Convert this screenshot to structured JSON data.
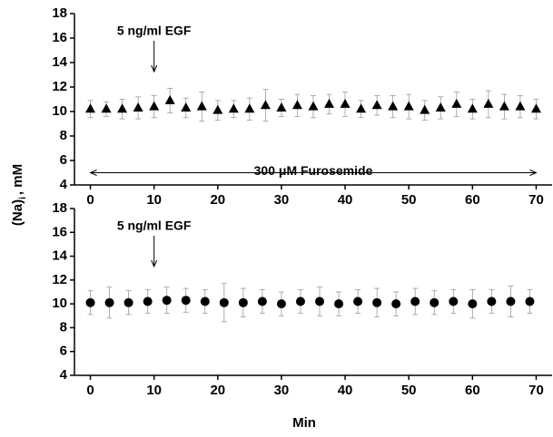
{
  "chart_data": [
    {
      "type": "scatter",
      "marker": "triangle",
      "y_label": "(Na)",
      "y_label_subscript": "i",
      "y_label_unit": ", mM",
      "xlim": [
        -2.5,
        72.5
      ],
      "ylim": [
        4,
        18
      ],
      "xticks": [
        0,
        10,
        20,
        30,
        40,
        50,
        60,
        70
      ],
      "yticks": [
        4,
        6,
        8,
        10,
        12,
        14,
        16,
        18
      ],
      "annotations": [
        {
          "text": "5 ng/ml EGF",
          "x": 10
        }
      ],
      "range_annotation": {
        "text": "300 μM Furosemide",
        "x_range": [
          0,
          70
        ]
      },
      "series": [
        {
          "color": "#000000",
          "x": [
            0,
            2.5,
            5,
            7.5,
            10,
            12.5,
            15,
            17.5,
            20,
            22.5,
            25,
            27.5,
            30,
            32.5,
            35,
            37.5,
            40,
            42.5,
            45,
            47.5,
            50,
            52.5,
            55,
            57.5,
            60,
            62.5,
            65,
            67.5,
            70
          ],
          "values": [
            10.2,
            10.2,
            10.2,
            10.3,
            10.4,
            10.9,
            10.3,
            10.4,
            10.1,
            10.2,
            10.2,
            10.5,
            10.3,
            10.5,
            10.4,
            10.6,
            10.6,
            10.2,
            10.5,
            10.4,
            10.4,
            10.1,
            10.3,
            10.6,
            10.2,
            10.6,
            10.4,
            10.4,
            10.2
          ],
          "errors": [
            0.7,
            0.6,
            0.8,
            0.9,
            0.9,
            1.0,
            0.8,
            1.2,
            0.8,
            0.7,
            0.9,
            1.3,
            0.7,
            0.9,
            0.9,
            0.8,
            1.0,
            0.7,
            0.8,
            0.9,
            1.0,
            0.8,
            0.9,
            1.0,
            0.8,
            1.1,
            1.0,
            0.9,
            0.8
          ]
        }
      ]
    },
    {
      "type": "scatter",
      "marker": "circle",
      "x_label": "Min",
      "xlim": [
        -2.5,
        72.5
      ],
      "ylim": [
        4,
        18
      ],
      "xticks": [
        0,
        10,
        20,
        30,
        40,
        50,
        60,
        70
      ],
      "yticks": [
        4,
        6,
        8,
        10,
        12,
        14,
        16,
        18
      ],
      "annotations": [
        {
          "text": "5 ng/ml EGF",
          "x": 10
        }
      ],
      "series": [
        {
          "color": "#000000",
          "x": [
            0,
            3,
            6,
            9,
            12,
            15,
            18,
            21,
            24,
            27,
            30,
            33,
            36,
            39,
            42,
            45,
            48,
            51,
            54,
            57,
            60,
            63,
            66,
            69
          ],
          "values": [
            10.1,
            10.1,
            10.1,
            10.2,
            10.3,
            10.3,
            10.2,
            10.1,
            10.1,
            10.2,
            10.0,
            10.2,
            10.2,
            10.0,
            10.2,
            10.1,
            10.0,
            10.2,
            10.1,
            10.2,
            10.0,
            10.2,
            10.2,
            10.2
          ],
          "errors": [
            1.0,
            1.3,
            1.0,
            1.0,
            1.1,
            1.0,
            1.0,
            1.6,
            1.2,
            1.0,
            1.0,
            1.0,
            1.2,
            1.0,
            1.0,
            1.2,
            1.0,
            1.1,
            1.0,
            1.0,
            1.2,
            1.0,
            1.3,
            1.0
          ]
        }
      ]
    }
  ]
}
